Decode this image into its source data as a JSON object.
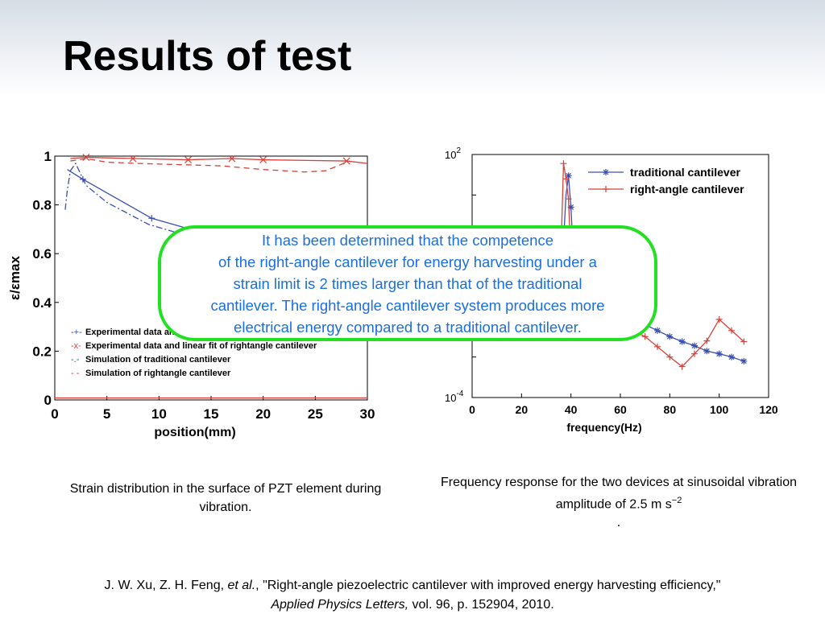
{
  "slide": {
    "title": "Results of test"
  },
  "callout": {
    "lines": [
      "It has been determined that the competence",
      "of the right-angle cantilever for energy harvesting under a",
      "strain limit is 2 times larger than that of the traditional",
      "cantilever. The right-angle cantilever system produces more",
      "electrical energy compared to a traditional cantilever."
    ]
  },
  "captions": {
    "left": "Strain distribution in the surface of PZT element during vibration.",
    "right_line1": "Frequency response for the two devices at sinusoidal vibration amplitude of 2.5 m s",
    "right_sup": "−2",
    "right_line2": "."
  },
  "citation": {
    "authors": "J. W. Xu, Z. H. Feng,",
    "etal": "et al.",
    "title_text": ", \"Right-angle piezoelectric cantilever with improved energy harvesting efficiency,\"",
    "journal": "Applied Physics Letters,",
    "details": " vol. 96, p. 152904, 2010."
  },
  "colors": {
    "blue_series": "#3a4fb0",
    "red_series": "#d8403a",
    "callout_border": "#22e022",
    "callout_text": "#1a6fe0"
  },
  "chart_data": [
    {
      "type": "line",
      "xlabel": "position(mm)",
      "ylabel": "ε/εmax",
      "xlim": [
        0,
        30
      ],
      "ylim": [
        0,
        1
      ],
      "xticks": [
        0,
        5,
        10,
        15,
        20,
        25,
        30
      ],
      "yticks": [
        0,
        0.2,
        0.4,
        0.6,
        0.8,
        1
      ],
      "legend_position": "bottom-left",
      "series": [
        {
          "name": "Experimental data and",
          "color": "#3a4fb0",
          "dash": "solid",
          "marker": "+",
          "x": [
            1.2,
            2.7,
            9.3,
            13
          ],
          "y": [
            0.945,
            0.905,
            0.745,
            0.7
          ],
          "markers_x": [
            2.7,
            9.3
          ],
          "markers_y": [
            0.905,
            0.745
          ]
        },
        {
          "name": "Experimental data and linear fit of rightangle cantilever",
          "color": "#d8403a",
          "dash": "solid",
          "marker": "x",
          "x": [
            1.5,
            3,
            7.5,
            12.8,
            17,
            20,
            28,
            30
          ],
          "y": [
            0.99,
            0.995,
            0.99,
            0.985,
            0.99,
            0.985,
            0.98,
            0.97
          ],
          "markers_x": [
            3,
            7.5,
            12.8,
            17,
            20,
            28
          ],
          "markers_y": [
            0.995,
            0.99,
            0.985,
            0.99,
            0.985,
            0.98
          ]
        },
        {
          "name": "Simulation of traditional cantilever",
          "color": "#3a4fb0",
          "dash": "dashdot",
          "marker": "",
          "x": [
            1.0,
            1.2,
            1.5,
            2.0,
            3,
            5,
            9,
            13
          ],
          "y": [
            0.78,
            0.86,
            0.94,
            0.97,
            0.88,
            0.81,
            0.72,
            0.67
          ]
        },
        {
          "name": "Simulation of rightangle cantilever",
          "color": "#d8403a",
          "dash": "dashed",
          "marker": "",
          "x": [
            1.5,
            3,
            5,
            8,
            12,
            16,
            20,
            24,
            26,
            28
          ],
          "y": [
            0.98,
            0.99,
            0.975,
            0.97,
            0.965,
            0.96,
            0.945,
            0.935,
            0.94,
            0.975
          ]
        },
        {
          "name": "",
          "color": "#d8403a",
          "dash": "solid",
          "marker": "",
          "x": [
            0,
            30
          ],
          "y": [
            0.008,
            0.008
          ]
        }
      ],
      "legend_entries": [
        {
          "marker": "-+-",
          "label": "Experimental data and"
        },
        {
          "marker": "-x-",
          "label": "Experimental data and linear fit of rightangle cantilever"
        },
        {
          "marker": "-.-",
          "label": "Simulation of traditional cantilever"
        },
        {
          "marker": "- -",
          "label": "Simulation of rightangle cantilever"
        }
      ]
    },
    {
      "type": "line",
      "xlabel": "frequency(Hz)",
      "ylabel": "",
      "scale": "log-y",
      "xlim": [
        0,
        120
      ],
      "ylim": [
        0.0001,
        100
      ],
      "xticks": [
        0,
        20,
        40,
        60,
        80,
        100,
        120
      ],
      "ytick_top": {
        "base": "10",
        "exp": "2"
      },
      "ytick_bottom": {
        "base": "10",
        "exp": "-4"
      },
      "legend_position": "top-right",
      "series": [
        {
          "name": "traditional cantilever",
          "color": "#3a4fb0",
          "marker": "*",
          "x": [
            37,
            38,
            39,
            40,
            41,
            70,
            75,
            80,
            85,
            90,
            95,
            100,
            105,
            110
          ],
          "y": [
            0.7,
            10,
            30,
            5,
            0.3,
            0.0063,
            0.0045,
            0.0032,
            0.0024,
            0.0019,
            0.0014,
            0.0012,
            0.001,
            0.00079
          ],
          "markers_x": [
            37,
            39,
            40,
            70,
            75,
            80,
            85,
            90,
            95,
            100,
            105,
            110
          ],
          "markers_y": [
            0.7,
            30,
            5,
            0.0063,
            0.0045,
            0.0032,
            0.0024,
            0.0019,
            0.0014,
            0.0012,
            0.001,
            0.00079
          ],
          "extra_marker": {
            "x": 12,
            "y": 0.0036
          }
        },
        {
          "name": "right-angle cantilever",
          "color": "#d8403a",
          "marker": "+",
          "x": [
            36,
            37,
            38,
            39,
            40,
            65,
            70,
            75,
            80,
            85,
            90,
            95,
            100,
            105,
            110
          ],
          "y": [
            0.5,
            60,
            25,
            8,
            0.3,
            0.0045,
            0.0032,
            0.0018,
            0.001,
            0.00058,
            0.0012,
            0.0025,
            0.0085,
            0.0045,
            0.0024
          ],
          "markers_x": [
            37,
            38,
            39,
            65,
            70,
            75,
            80,
            85,
            90,
            95,
            100,
            105,
            110
          ],
          "markers_y": [
            60,
            25,
            8,
            0.0045,
            0.0032,
            0.0018,
            0.001,
            0.00058,
            0.0012,
            0.0025,
            0.0085,
            0.0045,
            0.0024
          ]
        }
      ]
    }
  ]
}
